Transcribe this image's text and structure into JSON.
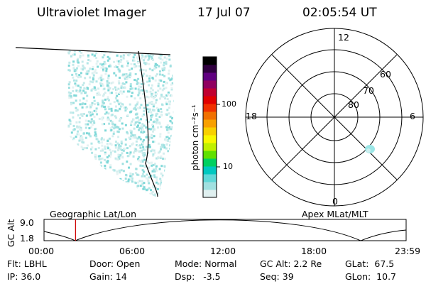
{
  "header": {
    "instrument": "Ultraviolet Imager",
    "date": "17 Jul 07",
    "time": "02:05:54 UT"
  },
  "colorbar": {
    "label": "photon cm⁻²s⁻¹",
    "ticks": [
      "100",
      "10"
    ],
    "colors": [
      "#e0f0f0",
      "#a0e0e0",
      "#60d8d8",
      "#00c8c0",
      "#00d060",
      "#60e000",
      "#c0f000",
      "#f8f800",
      "#f8d000",
      "#f8a000",
      "#f07000",
      "#f03000",
      "#e00000",
      "#c00030",
      "#900060",
      "#600080",
      "#300040",
      "#000000"
    ]
  },
  "polar": {
    "mlt_labels": {
      "top": "12",
      "right": "6",
      "bottom": "0",
      "left": "18"
    },
    "lat_labels": [
      "60",
      "70",
      "80"
    ]
  },
  "timeline": {
    "ylabel": "GC Alt",
    "ymax": "9.0",
    "ymin": "1.8",
    "left_caption": "Geographic Lat/Lon",
    "right_caption": "Apex MLat/MLT",
    "ticks": [
      "00:00",
      "06:00",
      "12:00",
      "18:00",
      "23:59"
    ],
    "marker_color": "#cc0000",
    "marker_fraction": 0.087
  },
  "info": {
    "flt": "Flt: LBHL",
    "ip": "IP: 36.0",
    "door": "Door: Open",
    "gain": "Gain: 14",
    "mode": "Mode: Normal",
    "dsp": "Dsp:   -3.5",
    "gcalt": "GC Alt: 2.2 Re",
    "seq": "Seq: 39",
    "glat": "GLat:  67.5",
    "glon": "GLon:  10.7"
  }
}
